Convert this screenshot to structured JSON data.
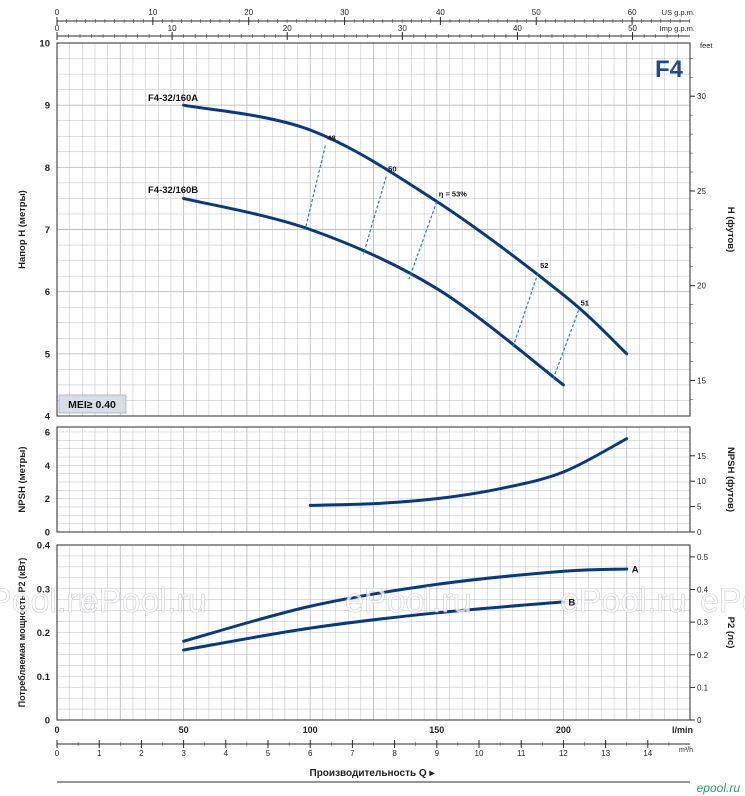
{
  "chart_data": [
    {
      "type": "line",
      "panel": "head",
      "badge": "F4",
      "ylabel": "Напор H (метры)",
      "ylabel_right": "H (футов)",
      "right_unit": "feet",
      "ylim": [
        4,
        10
      ],
      "yticks": [
        "4",
        "5",
        "6",
        "7",
        "8",
        "9",
        "10"
      ],
      "yticks_right": [
        "15",
        "20",
        "25",
        "30"
      ],
      "xlim": [
        0,
        250
      ],
      "mei_label": "MEI≥ 0.40",
      "series": [
        {
          "name": "F4-32/160A",
          "x": [
            50,
            100,
            150,
            200,
            225
          ],
          "y": [
            9.0,
            8.6,
            7.45,
            5.95,
            5.0
          ]
        },
        {
          "name": "F4-32/160B",
          "x": [
            50,
            100,
            150,
            200
          ],
          "y": [
            7.5,
            7.0,
            6.05,
            4.5
          ]
        }
      ],
      "efficiency": [
        {
          "label": "48",
          "top": [
            106,
            8.35
          ],
          "bottom": [
            98,
            7.0
          ]
        },
        {
          "label": "50",
          "top": [
            130,
            7.85
          ],
          "bottom": [
            121,
            6.6
          ]
        },
        {
          "label": "η = 53%",
          "top": [
            150,
            7.45
          ],
          "bottom": [
            139,
            6.2
          ]
        },
        {
          "label": "52",
          "top": [
            190,
            6.3
          ],
          "bottom": [
            180,
            5.1
          ]
        },
        {
          "label": "51",
          "top": [
            206,
            5.7
          ],
          "bottom": [
            196,
            4.6
          ]
        }
      ]
    },
    {
      "type": "line",
      "panel": "npsh",
      "ylabel": "NPSH (метры)",
      "ylabel_right": "NPSH (футов)",
      "ylim": [
        0,
        6
      ],
      "yticks": [
        "0",
        "2",
        "4",
        "6"
      ],
      "yticks_right": [
        "0",
        "5",
        "10",
        "15"
      ],
      "xlim": [
        0,
        250
      ],
      "series": [
        {
          "name": "",
          "x": [
            100,
            125,
            150,
            175,
            200,
            225
          ],
          "y": [
            1.6,
            1.7,
            2.0,
            2.6,
            3.6,
            5.6
          ]
        }
      ]
    },
    {
      "type": "line",
      "panel": "power",
      "ylabel": "Потребляемая мощность P2 (кВт)",
      "ylabel_right": "P2 (лс)",
      "ylim": [
        0,
        0.4
      ],
      "yticks": [
        "0",
        "0.1",
        "0.2",
        "0.3",
        "0.4"
      ],
      "yticks_right": [
        "0",
        "0.1",
        "0.2",
        "0.3",
        "0.4",
        "0.5"
      ],
      "xlim": [
        0,
        250
      ],
      "series": [
        {
          "name": "A",
          "x": [
            50,
            100,
            150,
            200,
            225
          ],
          "y": [
            0.18,
            0.26,
            0.31,
            0.34,
            0.345
          ]
        },
        {
          "name": "B",
          "x": [
            50,
            100,
            150,
            200
          ],
          "y": [
            0.16,
            0.21,
            0.245,
            0.27
          ]
        }
      ]
    }
  ],
  "axes": {
    "top_us": {
      "unit": "US g.p.m.",
      "ticks": [
        "0",
        "10",
        "20",
        "30",
        "40",
        "50",
        "60"
      ],
      "max": 66.04
    },
    "top_imp": {
      "unit": "Imp g.p.m.",
      "ticks": [
        "0",
        "10",
        "20",
        "30",
        "40",
        "50"
      ],
      "max": 54.99
    },
    "bottom_lmin": {
      "unit": "l/min",
      "ticks": [
        "0",
        "50",
        "100",
        "150",
        "200"
      ],
      "max": 250
    },
    "bottom_m3h": {
      "unit": "m³/h",
      "ticks": [
        "0",
        "1",
        "2",
        "3",
        "4",
        "5",
        "6",
        "7",
        "8",
        "9",
        "10",
        "11",
        "12",
        "13",
        "14"
      ],
      "max": 15
    },
    "xlabel": "Производительность Q ▸"
  },
  "watermarks": [
    "ePool.ru",
    "ePool.ru",
    "ePool.ru",
    "ePool.ru",
    "ePool.ru"
  ],
  "footer_logo": "epool.ru",
  "colors": {
    "curve": "#0a3a78",
    "efficiency": "#1e7fc0",
    "grid": "#b9bcc0",
    "frame": "#2a2a2a",
    "mei_bg": "#d8dee6",
    "badge": "#1f4a8c"
  }
}
